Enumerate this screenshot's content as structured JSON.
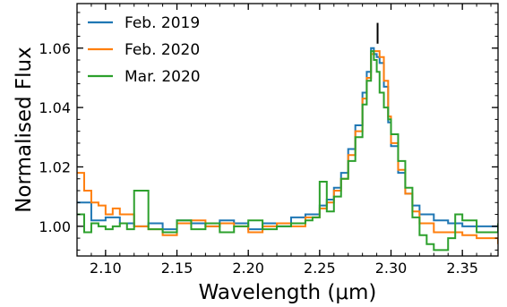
{
  "chart_data": {
    "type": "line",
    "xlabel": "Wavelength (μm)",
    "ylabel": "Normalised Flux",
    "xlim": [
      2.08,
      2.375
    ],
    "ylim": [
      0.99,
      1.075
    ],
    "x_ticks": [
      "2.10",
      "2.15",
      "2.20",
      "2.25",
      "2.30",
      "2.35"
    ],
    "x_tick_values": [
      2.1,
      2.15,
      2.2,
      2.25,
      2.3,
      2.35
    ],
    "y_ticks": [
      "1.00",
      "1.02",
      "1.04",
      "1.06"
    ],
    "y_tick_values": [
      1.0,
      1.02,
      1.04,
      1.06
    ],
    "legend_position": "top-left",
    "grid": false,
    "line_style": "step",
    "marker": {
      "x": 2.2906,
      "y_low": 1.0615,
      "y_high": 1.0685
    },
    "series": [
      {
        "name": "Feb. 2019",
        "color": "#1f77b4",
        "x": [
          2.08,
          2.09,
          2.1,
          2.11,
          2.12,
          2.13,
          2.14,
          2.15,
          2.16,
          2.17,
          2.18,
          2.19,
          2.2,
          2.21,
          2.22,
          2.23,
          2.24,
          2.25,
          2.255,
          2.26,
          2.265,
          2.27,
          2.275,
          2.28,
          2.283,
          2.286,
          2.288,
          2.29,
          2.292,
          2.295,
          2.298,
          2.3,
          2.305,
          2.31,
          2.315,
          2.32,
          2.33,
          2.34,
          2.35,
          2.36,
          2.375
        ],
        "y": [
          1.008,
          1.002,
          1.003,
          1.001,
          1.0,
          1.001,
          0.999,
          1.002,
          1.001,
          1.0,
          1.002,
          1.001,
          0.999,
          1.001,
          1.0,
          1.003,
          1.004,
          1.007,
          1.009,
          1.013,
          1.018,
          1.026,
          1.034,
          1.045,
          1.052,
          1.06,
          1.058,
          1.057,
          1.055,
          1.047,
          1.035,
          1.027,
          1.018,
          1.011,
          1.007,
          1.004,
          1.002,
          1.001,
          1.0,
          1.0,
          0.999
        ]
      },
      {
        "name": "Feb. 2020",
        "color": "#ff7f0e",
        "x": [
          2.08,
          2.085,
          2.09,
          2.095,
          2.1,
          2.105,
          2.11,
          2.12,
          2.13,
          2.14,
          2.15,
          2.16,
          2.17,
          2.18,
          2.19,
          2.2,
          2.21,
          2.22,
          2.23,
          2.24,
          2.25,
          2.255,
          2.26,
          2.265,
          2.27,
          2.275,
          2.28,
          2.283,
          2.286,
          2.288,
          2.29,
          2.292,
          2.295,
          2.298,
          2.3,
          2.305,
          2.31,
          2.315,
          2.32,
          2.33,
          2.34,
          2.35,
          2.36,
          2.375
        ],
        "y": [
          1.018,
          1.012,
          1.008,
          1.007,
          1.004,
          1.006,
          1.004,
          1.0,
          0.999,
          0.997,
          1.001,
          1.002,
          1.0,
          1.001,
          1.0,
          0.998,
          1.0,
          1.001,
          1.0,
          1.003,
          1.006,
          1.008,
          1.012,
          1.016,
          1.024,
          1.032,
          1.043,
          1.05,
          1.058,
          1.059,
          1.059,
          1.057,
          1.049,
          1.037,
          1.028,
          1.019,
          1.011,
          1.005,
          1.001,
          0.998,
          0.998,
          0.997,
          0.996,
          0.994
        ]
      },
      {
        "name": "Mar. 2020",
        "color": "#2ca02c",
        "x": [
          2.08,
          2.085,
          2.09,
          2.095,
          2.1,
          2.105,
          2.11,
          2.115,
          2.12,
          2.13,
          2.14,
          2.15,
          2.16,
          2.17,
          2.18,
          2.19,
          2.2,
          2.21,
          2.22,
          2.23,
          2.24,
          2.245,
          2.25,
          2.255,
          2.26,
          2.265,
          2.27,
          2.275,
          2.28,
          2.283,
          2.286,
          2.288,
          2.29,
          2.292,
          2.295,
          2.298,
          2.3,
          2.305,
          2.31,
          2.315,
          2.32,
          2.325,
          2.33,
          2.34,
          2.345,
          2.35,
          2.36,
          2.375
        ],
        "y": [
          1.004,
          0.998,
          1.001,
          1.0,
          0.999,
          1.0,
          1.001,
          0.999,
          1.012,
          0.999,
          0.998,
          1.002,
          0.999,
          1.001,
          0.998,
          1.0,
          1.002,
          0.999,
          1.0,
          1.001,
          1.002,
          1.003,
          1.015,
          1.005,
          1.01,
          1.016,
          1.022,
          1.03,
          1.041,
          1.049,
          1.059,
          1.056,
          1.052,
          1.045,
          1.04,
          1.036,
          1.031,
          1.022,
          1.013,
          1.003,
          0.997,
          0.994,
          0.992,
          0.996,
          1.004,
          1.002,
          0.998,
          1.001
        ]
      }
    ]
  }
}
